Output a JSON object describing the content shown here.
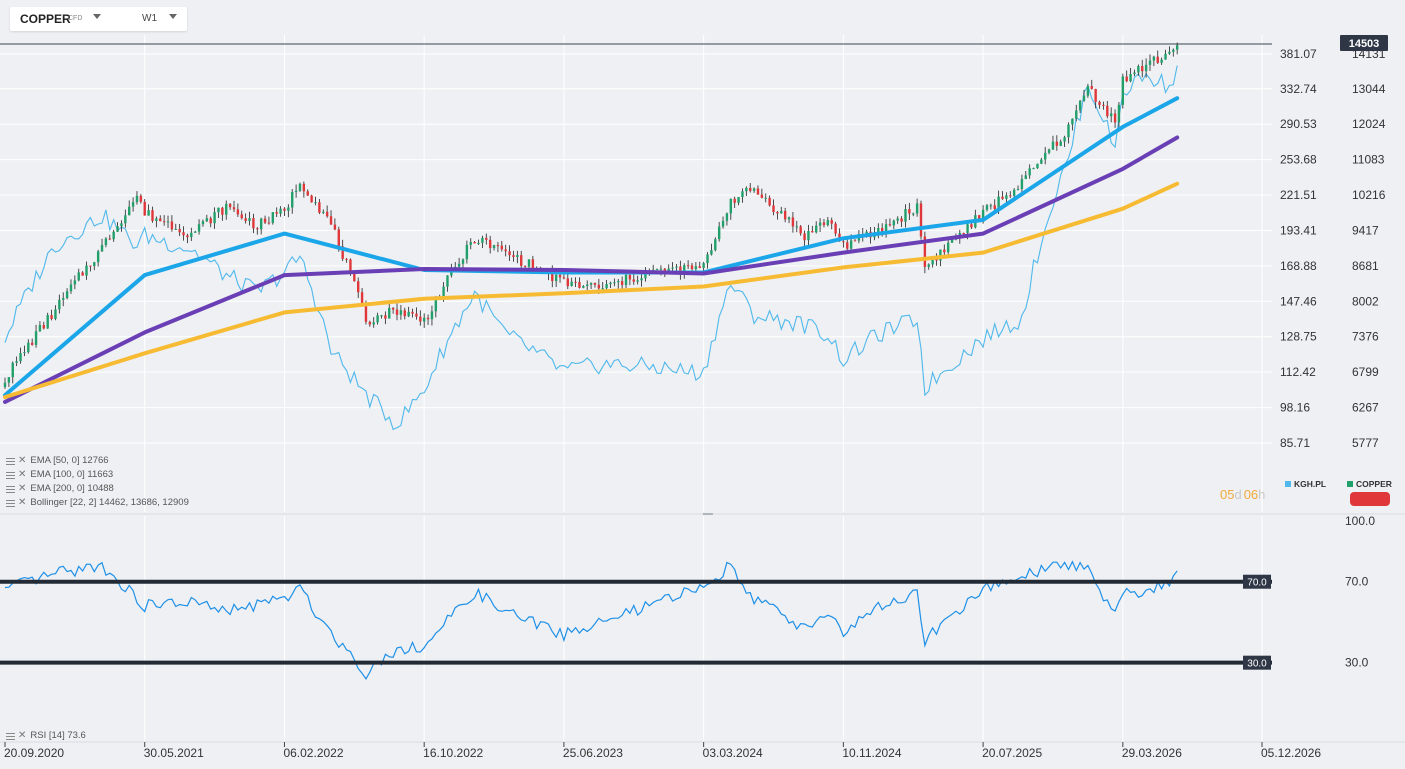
{
  "toolbar": {
    "symbol": "COPPER",
    "symbol_type": "CFD",
    "timeframe": "W1"
  },
  "price_panel": {
    "last_price_badge": "14503",
    "left_axis_ticks": [
      "381.07",
      "332.74",
      "290.53",
      "253.68",
      "221.51",
      "193.41",
      "168.88",
      "147.46",
      "128.75",
      "112.42",
      "98.16",
      "85.71"
    ],
    "right_axis_ticks": [
      "14131",
      "13044",
      "12024",
      "11083",
      "10216",
      "9417",
      "8681",
      "8002",
      "7376",
      "6799",
      "6267",
      "5777"
    ],
    "countdown": {
      "days": "05",
      "days_unit": "d",
      "hours": "06",
      "hours_unit": "h"
    },
    "legend_compare": [
      {
        "label": "KGH.PL",
        "color": "#4fb8ec"
      },
      {
        "label": "COPPER",
        "color": "#22a06b"
      }
    ],
    "indicators": [
      {
        "label": "EMA [50, 0] 12766",
        "color": "#1aa6e8"
      },
      {
        "label": "EMA [100, 0] 11663",
        "color": "#6a3fb5"
      },
      {
        "label": "EMA [200, 0] 10488",
        "color": "#f6bb33"
      },
      {
        "label": "Bollinger [22, 2] 14462, 13686, 12909",
        "color": "#999999"
      }
    ]
  },
  "rsi_panel": {
    "label": "RSI [14] 73.6",
    "axis_ticks": [
      "100.0",
      "70.0",
      "30.0"
    ],
    "level_badges": [
      "70.0",
      "30.0"
    ]
  },
  "x_axis": {
    "ticks": [
      "20.09.2020",
      "30.05.2021",
      "06.02.2022",
      "16.10.2022",
      "25.06.2023",
      "03.03.2024",
      "10.11.2024",
      "20.07.2025",
      "29.03.2026",
      "05.12.2026"
    ]
  },
  "chart_data": [
    {
      "type": "candlestick",
      "name": "COPPER",
      "x_range": [
        "20.09.2020",
        "05.12.2026"
      ],
      "y_range": [
        5600,
        14600
      ],
      "y_scale": "log",
      "points": [
        [
          "20.09.2020",
          6700
        ],
        [
          "20.12.2020",
          7850
        ],
        [
          "14.03.2021",
          9050
        ],
        [
          "16.05.2021",
          10200
        ],
        [
          "30.05.2021",
          9800
        ],
        [
          "22.08.2021",
          9350
        ],
        [
          "24.10.2021",
          9950
        ],
        [
          "19.12.2021",
          9520
        ],
        [
          "06.02.2022",
          9850
        ],
        [
          "06.03.2022",
          10550
        ],
        [
          "01.05.2022",
          9550
        ],
        [
          "03.07.2022",
          7650
        ],
        [
          "28.08.2022",
          7850
        ],
        [
          "16.10.2022",
          7650
        ],
        [
          "15.01.2023",
          9250
        ],
        [
          "12.03.2023",
          8950
        ],
        [
          "25.06.2023",
          8350
        ],
        [
          "03.09.2023",
          8250
        ],
        [
          "26.11.2023",
          8550
        ],
        [
          "03.03.2024",
          8650
        ],
        [
          "21.04.2024",
          10100
        ],
        [
          "02.06.2024",
          10350
        ],
        [
          "01.09.2024",
          9300
        ],
        [
          "13.10.2024",
          9650
        ],
        [
          "10.11.2024",
          9100
        ],
        [
          "12.01.2025",
          9400
        ],
        [
          "23.03.2025",
          9950
        ],
        [
          "06.04.2025",
          8650
        ],
        [
          "20.07.2025",
          9800
        ],
        [
          "28.09.2025",
          10500
        ],
        [
          "21.12.2025",
          11900
        ],
        [
          "25.01.2026",
          13100
        ],
        [
          "15.03.2026",
          12100
        ],
        [
          "29.03.2026",
          13300
        ],
        [
          "03.05.2026",
          13700
        ],
        [
          "14.06.2026",
          14100
        ],
        [
          "05.07.2026",
          14503
        ]
      ]
    },
    {
      "type": "line",
      "name": "KGH.PL",
      "y_range": [
        80,
        400
      ],
      "y_scale": "log",
      "points": [
        [
          "20.09.2020",
          128
        ],
        [
          "20.12.2020",
          183
        ],
        [
          "14.03.2021",
          205
        ],
        [
          "16.05.2021",
          183
        ],
        [
          "30.05.2021",
          190
        ],
        [
          "22.08.2021",
          180
        ],
        [
          "24.10.2021",
          163
        ],
        [
          "19.12.2021",
          153
        ],
        [
          "06.02.2022",
          165
        ],
        [
          "06.03.2022",
          175
        ],
        [
          "01.05.2022",
          122
        ],
        [
          "03.07.2022",
          103
        ],
        [
          "28.08.2022",
          92
        ],
        [
          "16.10.2022",
          105
        ],
        [
          "15.01.2023",
          152
        ],
        [
          "12.03.2023",
          130
        ],
        [
          "25.06.2023",
          113
        ],
        [
          "03.09.2023",
          116
        ],
        [
          "26.11.2023",
          115
        ],
        [
          "03.03.2024",
          112
        ],
        [
          "21.04.2024",
          158
        ],
        [
          "02.06.2024",
          140
        ],
        [
          "01.09.2024",
          135
        ],
        [
          "13.10.2024",
          130
        ],
        [
          "10.11.2024",
          118
        ],
        [
          "12.01.2025",
          130
        ],
        [
          "23.03.2025",
          138
        ],
        [
          "06.04.2025",
          106
        ],
        [
          "20.07.2025",
          128
        ],
        [
          "28.09.2025",
          138
        ],
        [
          "21.12.2025",
          255
        ],
        [
          "25.01.2026",
          340
        ],
        [
          "15.03.2026",
          265
        ],
        [
          "29.03.2026",
          330
        ],
        [
          "03.05.2026",
          350
        ],
        [
          "14.06.2026",
          340
        ],
        [
          "05.07.2026",
          355
        ]
      ]
    },
    {
      "type": "line",
      "name": "EMA [50, 0]",
      "points": [
        [
          "20.09.2020",
          6450
        ],
        [
          "30.05.2021",
          8500
        ],
        [
          "06.02.2022",
          9350
        ],
        [
          "16.10.2022",
          8600
        ],
        [
          "25.06.2023",
          8550
        ],
        [
          "03.03.2024",
          8550
        ],
        [
          "10.11.2024",
          9250
        ],
        [
          "20.07.2025",
          9650
        ],
        [
          "29.03.2026",
          11950
        ],
        [
          "05.07.2026",
          12766
        ]
      ]
    },
    {
      "type": "line",
      "name": "EMA [100, 0]",
      "points": [
        [
          "20.09.2020",
          6350
        ],
        [
          "30.05.2021",
          7450
        ],
        [
          "06.02.2022",
          8500
        ],
        [
          "16.10.2022",
          8620
        ],
        [
          "25.06.2023",
          8600
        ],
        [
          "03.03.2024",
          8530
        ],
        [
          "10.11.2024",
          8950
        ],
        [
          "20.07.2025",
          9350
        ],
        [
          "29.03.2026",
          10850
        ],
        [
          "05.07.2026",
          11663
        ]
      ]
    },
    {
      "type": "line",
      "name": "EMA [200, 0]",
      "points": [
        [
          "20.09.2020",
          6420
        ],
        [
          "30.05.2021",
          7100
        ],
        [
          "06.02.2022",
          7800
        ],
        [
          "16.10.2022",
          8050
        ],
        [
          "25.06.2023",
          8150
        ],
        [
          "03.03.2024",
          8280
        ],
        [
          "10.11.2024",
          8650
        ],
        [
          "20.07.2025",
          8950
        ],
        [
          "29.03.2026",
          9900
        ],
        [
          "05.07.2026",
          10488
        ]
      ]
    },
    {
      "type": "line",
      "name": "RSI [14]",
      "y_range": [
        0,
        100
      ],
      "reference_lines": [
        70,
        30
      ],
      "points": [
        [
          "20.09.2020",
          66
        ],
        [
          "20.12.2020",
          74
        ],
        [
          "14.03.2021",
          78
        ],
        [
          "30.05.2021",
          58
        ],
        [
          "22.08.2021",
          60
        ],
        [
          "24.10.2021",
          55
        ],
        [
          "06.02.2022",
          62
        ],
        [
          "06.03.2022",
          66
        ],
        [
          "01.05.2022",
          45
        ],
        [
          "03.07.2022",
          25
        ],
        [
          "28.08.2022",
          37
        ],
        [
          "16.10.2022",
          38
        ],
        [
          "15.01.2023",
          65
        ],
        [
          "12.03.2023",
          55
        ],
        [
          "25.06.2023",
          44
        ],
        [
          "03.09.2023",
          50
        ],
        [
          "26.11.2023",
          58
        ],
        [
          "03.03.2024",
          68
        ],
        [
          "21.04.2024",
          78
        ],
        [
          "02.06.2024",
          62
        ],
        [
          "01.09.2024",
          47
        ],
        [
          "13.10.2024",
          55
        ],
        [
          "10.11.2024",
          45
        ],
        [
          "12.01.2025",
          57
        ],
        [
          "23.03.2025",
          64
        ],
        [
          "06.04.2025",
          41
        ],
        [
          "20.07.2025",
          66
        ],
        [
          "28.09.2025",
          73
        ],
        [
          "21.12.2025",
          79
        ],
        [
          "25.01.2026",
          77
        ],
        [
          "15.03.2026",
          53
        ],
        [
          "29.03.2026",
          66
        ],
        [
          "03.05.2026",
          64
        ],
        [
          "14.06.2026",
          69
        ],
        [
          "05.07.2026",
          73.6
        ]
      ]
    }
  ]
}
